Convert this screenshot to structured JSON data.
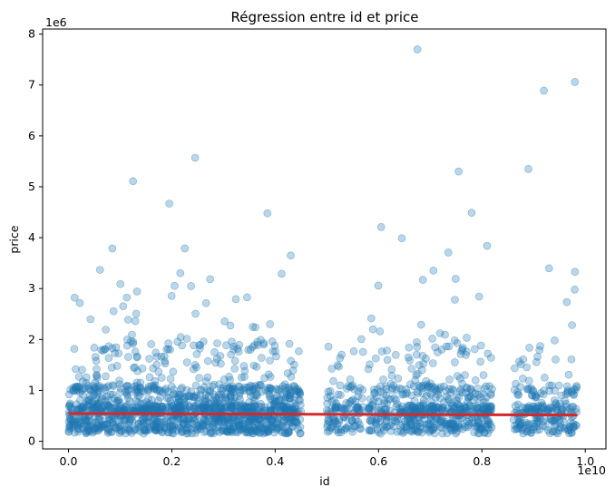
{
  "chart_data": {
    "type": "scatter",
    "title": "Régression entre id et price",
    "xlabel": "id",
    "ylabel": "price",
    "x_offset_label": "1e10",
    "y_offset_label": "1e6",
    "xlim": [
      -0.05,
      1.04
    ],
    "ylim": [
      -0.15,
      8.1
    ],
    "x_unit_multiplier": 10000000000,
    "y_unit_multiplier": 1000000,
    "x_ticks": [
      "0.0",
      "0.2",
      "0.4",
      "0.6",
      "0.8",
      "1.0"
    ],
    "y_ticks": [
      "0",
      "1",
      "2",
      "3",
      "4",
      "5",
      "6",
      "7",
      "8"
    ],
    "grid": false,
    "point_color": "#1f77b4",
    "point_alpha": 0.3,
    "line_color": "#d62728",
    "point_clusters": [
      {
        "x_range": [
          0.0,
          0.45
        ],
        "density": 1.0
      },
      {
        "x_range": [
          0.5,
          0.57
        ],
        "density": 0.55
      },
      {
        "x_range": [
          0.58,
          0.66
        ],
        "density": 0.6
      },
      {
        "x_range": [
          0.66,
          0.82
        ],
        "density": 0.85
      },
      {
        "x_range": [
          0.86,
          0.985
        ],
        "density": 0.6
      }
    ],
    "outliers": [
      {
        "x": 0.125,
        "y": 5.11
      },
      {
        "x": 0.195,
        "y": 4.67
      },
      {
        "x": 0.245,
        "y": 5.57
      },
      {
        "x": 0.385,
        "y": 4.48
      },
      {
        "x": 0.43,
        "y": 3.65
      },
      {
        "x": 0.085,
        "y": 3.79
      },
      {
        "x": 0.225,
        "y": 3.79
      },
      {
        "x": 0.605,
        "y": 4.21
      },
      {
        "x": 0.645,
        "y": 3.99
      },
      {
        "x": 0.675,
        "y": 7.7
      },
      {
        "x": 0.755,
        "y": 5.3
      },
      {
        "x": 0.78,
        "y": 4.49
      },
      {
        "x": 0.81,
        "y": 3.84
      },
      {
        "x": 0.89,
        "y": 5.35
      },
      {
        "x": 0.92,
        "y": 6.89
      },
      {
        "x": 0.98,
        "y": 7.06
      },
      {
        "x": 0.93,
        "y": 3.4
      },
      {
        "x": 0.98,
        "y": 3.33
      },
      {
        "x": 0.735,
        "y": 3.71
      }
    ],
    "regression_line": {
      "x": [
        0.0,
        0.985
      ],
      "y": [
        0.545,
        0.515
      ]
    }
  }
}
